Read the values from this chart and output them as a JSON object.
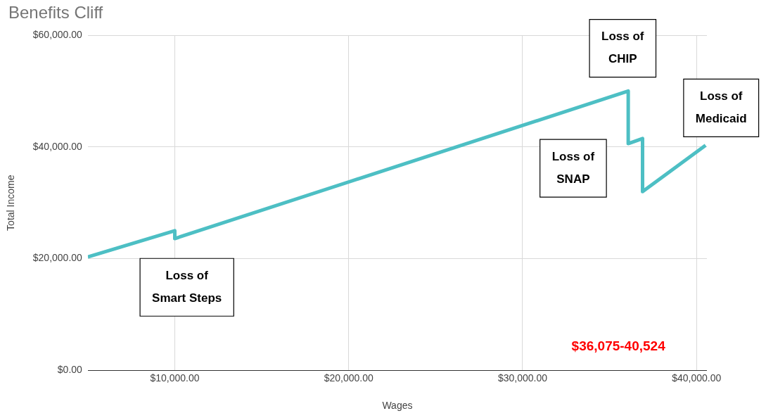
{
  "chart_data": {
    "type": "line",
    "title": "Benefits Cliff",
    "xlabel": "Wages",
    "ylabel": "Total Income",
    "x": [
      5000,
      10000,
      10000,
      36075,
      36075,
      36900,
      36900,
      40524
    ],
    "series": [
      {
        "color": "#4dbfc4",
        "values": [
          20300,
          25000,
          23600,
          50000,
          40600,
          41500,
          32000,
          40300
        ]
      }
    ],
    "xlim": [
      5000,
      40600
    ],
    "ylim": [
      0,
      60000
    ],
    "xticks": [
      {
        "value": 10000,
        "label": "$10,000.00"
      },
      {
        "value": 20000,
        "label": "$20,000.00"
      },
      {
        "value": 30000,
        "label": "$30,000.00"
      },
      {
        "value": 40000,
        "label": "$40,000.00"
      }
    ],
    "yticks": [
      {
        "value": 0,
        "label": "$0.00"
      },
      {
        "value": 20000,
        "label": "$20,000.00"
      },
      {
        "value": 40000,
        "label": "$40,000.00"
      },
      {
        "value": 60000,
        "label": "$60,000.00"
      }
    ],
    "annotations": [
      "Loss of\nSmart Steps",
      "Loss of\nCHIP",
      "Loss of\nSNAP",
      "Loss of\nMedicaid",
      "$36,075-40,524"
    ],
    "grid": true,
    "legend": false,
    "marker": "none",
    "line_style": "solid"
  }
}
